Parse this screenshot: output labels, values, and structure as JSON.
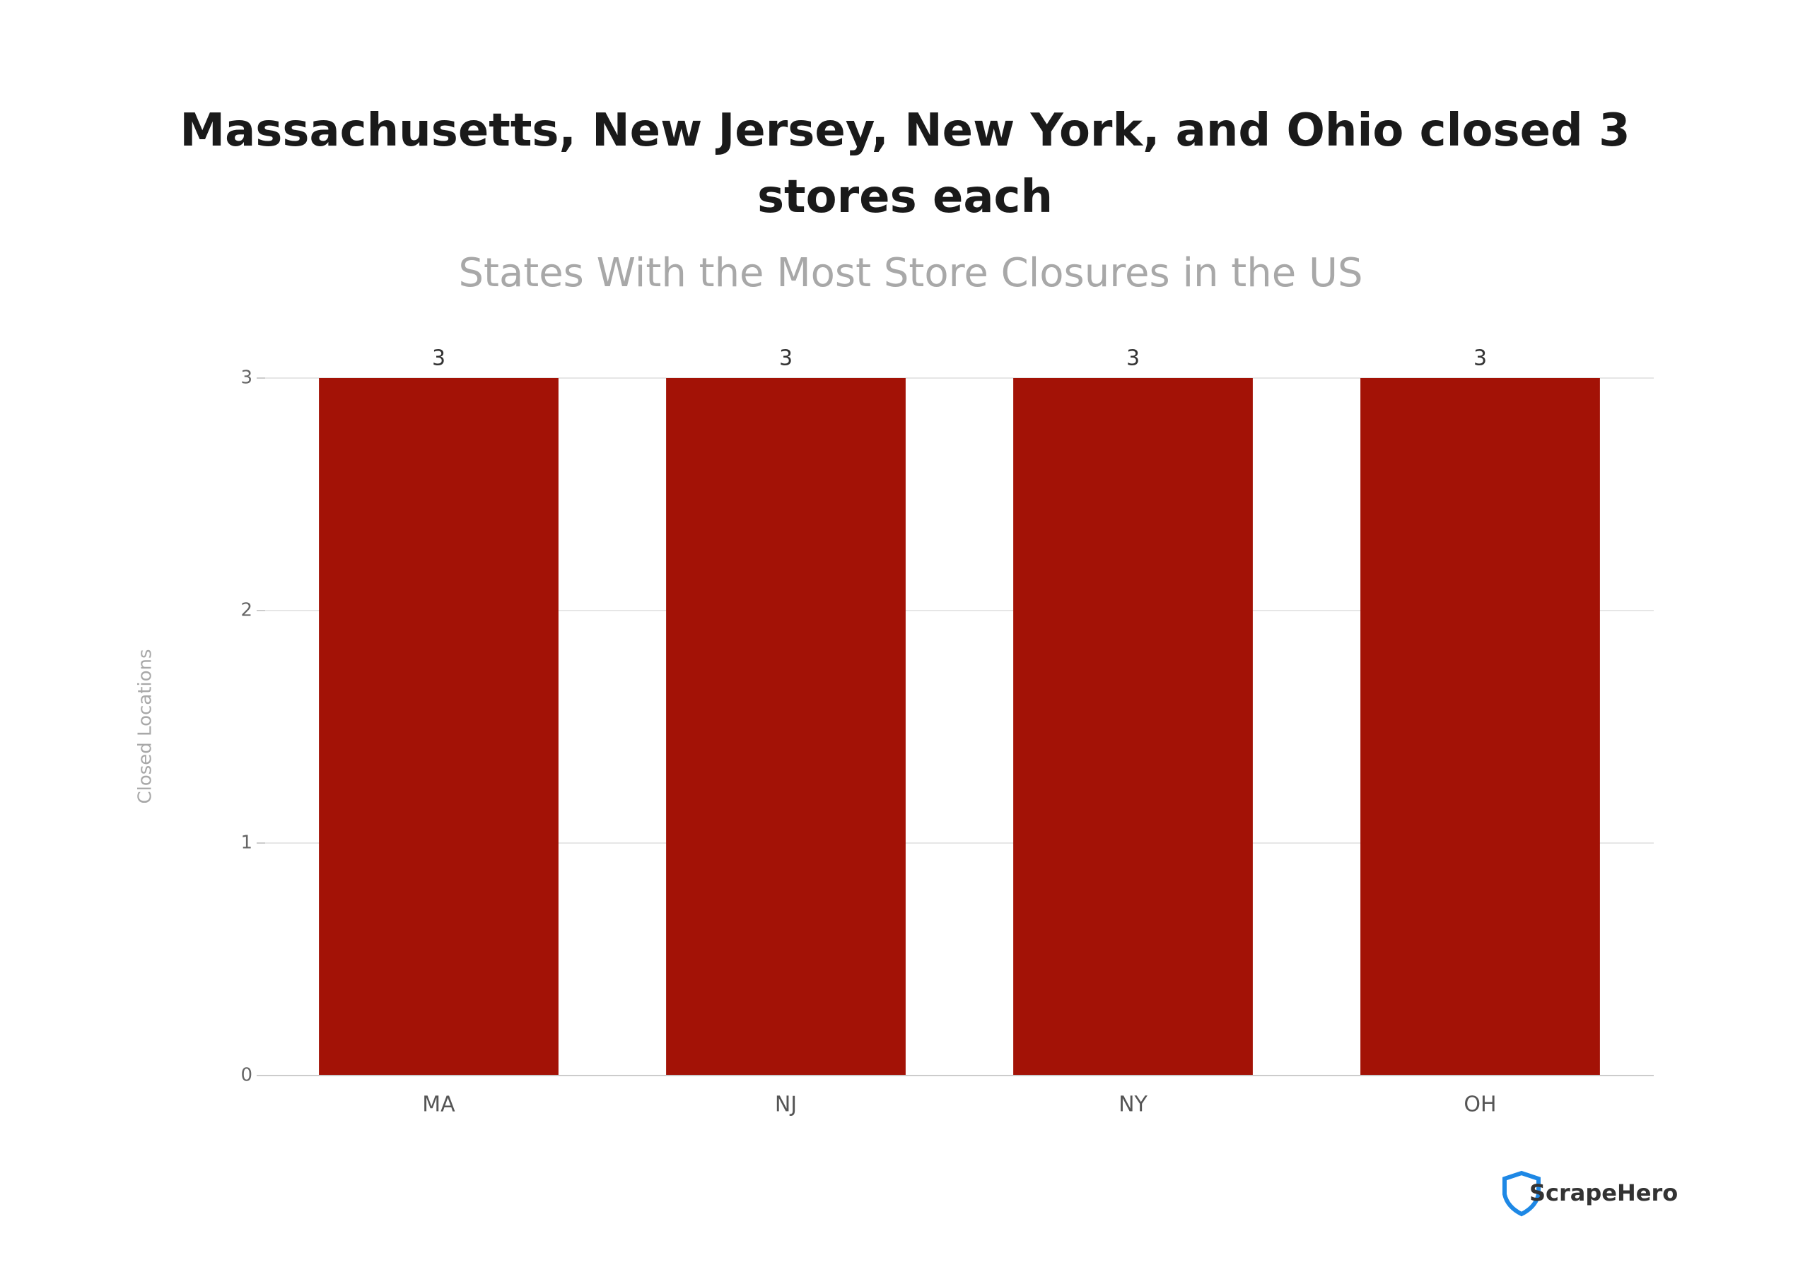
{
  "chart_data": {
    "type": "bar",
    "title": "Massachusetts, New Jersey, New York, and Ohio closed 3 stores each",
    "subtitle": "States With the Most Store Closures in the US",
    "y_label": "Closed Locations",
    "categories": [
      "MA",
      "NJ",
      "NY",
      "OH"
    ],
    "values": [
      3,
      3,
      3,
      3
    ],
    "color": "#a31206",
    "ylim": [
      0,
      3
    ],
    "yticks": [
      0,
      1,
      2,
      3
    ],
    "grid": true,
    "data_labels": true
  },
  "logo_text": "ScrapeHero"
}
